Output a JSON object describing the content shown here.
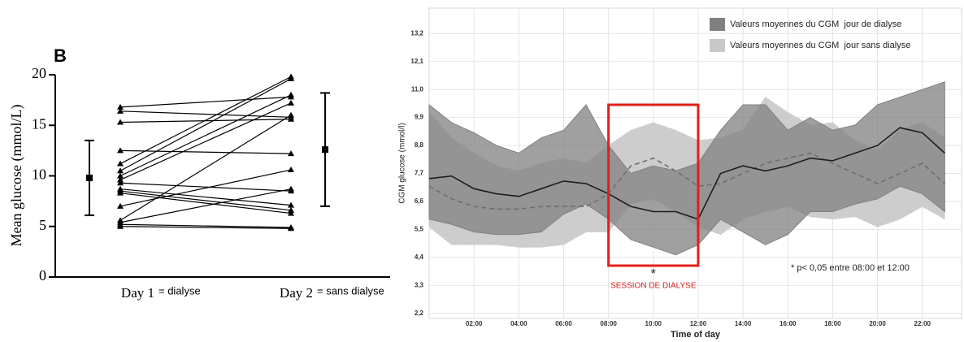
{
  "chart_data": [
    {
      "type": "paired",
      "panel_label": "B",
      "categories": [
        "Day 1",
        "Day 2"
      ],
      "category_notes": [
        "= dialyse",
        "= sans dialyse"
      ],
      "ylabel": "Mean glucose (mmol/L)",
      "ylim": [
        0,
        20
      ],
      "yticks": [
        0,
        5,
        10,
        15,
        20
      ],
      "color": "#000000",
      "pairs": [
        [
          16.8,
          17.8
        ],
        [
          16.4,
          15.8
        ],
        [
          15.3,
          15.6
        ],
        [
          12.5,
          12.2
        ],
        [
          11.2,
          19.8
        ],
        [
          10.5,
          19.6
        ],
        [
          10.0,
          18.0
        ],
        [
          9.6,
          17.2
        ],
        [
          9.3,
          8.5
        ],
        [
          8.7,
          7.1
        ],
        [
          8.5,
          6.6
        ],
        [
          8.3,
          6.3
        ],
        [
          7.0,
          10.6
        ],
        [
          5.6,
          16.0
        ],
        [
          5.4,
          8.7
        ],
        [
          5.2,
          4.9
        ],
        [
          5.0,
          4.8
        ]
      ],
      "means": [
        9.8,
        12.6
      ],
      "errors": [
        3.7,
        5.6
      ]
    },
    {
      "type": "band_line",
      "ylabel": "CGM glucose (mmol/l)",
      "xlabel": "Time of day",
      "x": [
        0,
        1,
        2,
        3,
        4,
        5,
        6,
        7,
        8,
        9,
        10,
        11,
        12,
        13,
        14,
        15,
        16,
        17,
        18,
        19,
        20,
        21,
        22,
        23
      ],
      "xlim": [
        0,
        23.75
      ],
      "xticks": [
        {
          "value": 2,
          "label": "02:00"
        },
        {
          "value": 4,
          "label": "04:00"
        },
        {
          "value": 6,
          "label": "06:00"
        },
        {
          "value": 8,
          "label": "08:00"
        },
        {
          "value": 10,
          "label": "10:00"
        },
        {
          "value": 12,
          "label": "12:00"
        },
        {
          "value": 14,
          "label": "14:00"
        },
        {
          "value": 16,
          "label": "16:00"
        },
        {
          "value": 18,
          "label": "18:00"
        },
        {
          "value": 20,
          "label": "20:00"
        },
        {
          "value": 22,
          "label": "22:00"
        }
      ],
      "ylim": [
        2.0,
        14.2
      ],
      "yticks": [
        {
          "value": 2.2,
          "label": "2,2"
        },
        {
          "value": 3.3,
          "label": "3,3"
        },
        {
          "value": 4.4,
          "label": "4,4"
        },
        {
          "value": 5.5,
          "label": "5,5"
        },
        {
          "value": 6.6,
          "label": "6,6"
        },
        {
          "value": 7.7,
          "label": "7,7"
        },
        {
          "value": 8.8,
          "label": "8,8"
        },
        {
          "value": 9.9,
          "label": "9,9"
        },
        {
          "value": 11.0,
          "label": "11,0"
        },
        {
          "value": 12.1,
          "label": "12,1"
        },
        {
          "value": 13.2,
          "label": "13,2"
        }
      ],
      "grid": true,
      "legend": "top-right",
      "series": [
        {
          "name": "Valeurs moyennes du CGM  jour sans dialyse",
          "color": "#6e6e6e",
          "band_color": "#c8c8c8",
          "dashed": true,
          "values": [
            7.2,
            6.7,
            6.4,
            6.3,
            6.3,
            6.4,
            6.4,
            6.4,
            6.9,
            8.0,
            8.3,
            7.8,
            7.2,
            7.3,
            7.7,
            8.1,
            8.3,
            8.5,
            8.1,
            7.7,
            7.3,
            7.7,
            8.1,
            7.3
          ],
          "upper": [
            10.1,
            9.1,
            8.5,
            8.0,
            7.8,
            8.1,
            8.3,
            8.1,
            8.8,
            9.4,
            9.7,
            9.4,
            9.0,
            9.1,
            9.4,
            10.7,
            10.1,
            9.6,
            9.7,
            9.0,
            8.6,
            9.4,
            9.7,
            9.1
          ],
          "lower": [
            5.6,
            4.9,
            4.9,
            4.9,
            4.8,
            4.8,
            4.9,
            5.4,
            5.4,
            6.5,
            6.7,
            6.2,
            5.6,
            5.3,
            5.9,
            6.2,
            6.4,
            6.0,
            5.9,
            6.0,
            5.6,
            5.9,
            6.4,
            5.9
          ]
        },
        {
          "name": "Valeurs moyennes du CGM  jour de dialyse",
          "color": "#1e1e1e",
          "band_color": "#808080",
          "dashed": false,
          "values": [
            7.5,
            7.6,
            7.1,
            6.9,
            6.8,
            7.1,
            7.4,
            7.3,
            6.9,
            6.4,
            6.2,
            6.2,
            5.9,
            7.7,
            8.0,
            7.8,
            8.0,
            8.3,
            8.2,
            8.5,
            8.8,
            9.5,
            9.3,
            8.5
          ],
          "upper": [
            10.4,
            9.7,
            9.3,
            8.8,
            8.5,
            9.1,
            9.4,
            10.4,
            8.8,
            7.7,
            8.0,
            7.8,
            8.1,
            9.4,
            10.4,
            10.4,
            9.4,
            9.9,
            9.4,
            9.6,
            10.4,
            10.7,
            11.0,
            11.3
          ],
          "lower": [
            5.9,
            5.7,
            5.4,
            5.3,
            5.3,
            5.4,
            6.1,
            6.5,
            5.9,
            5.1,
            4.8,
            4.5,
            4.9,
            5.9,
            5.4,
            4.9,
            5.3,
            6.2,
            6.2,
            6.5,
            6.7,
            7.2,
            6.9,
            6.2
          ]
        }
      ],
      "highlight": {
        "x": [
          8,
          12
        ],
        "marker": "*",
        "label": "SESSION DE DIALYSE",
        "color": "#e0201b"
      },
      "annotation": "* p< 0,05 entre 08:00 et 12:00"
    }
  ]
}
